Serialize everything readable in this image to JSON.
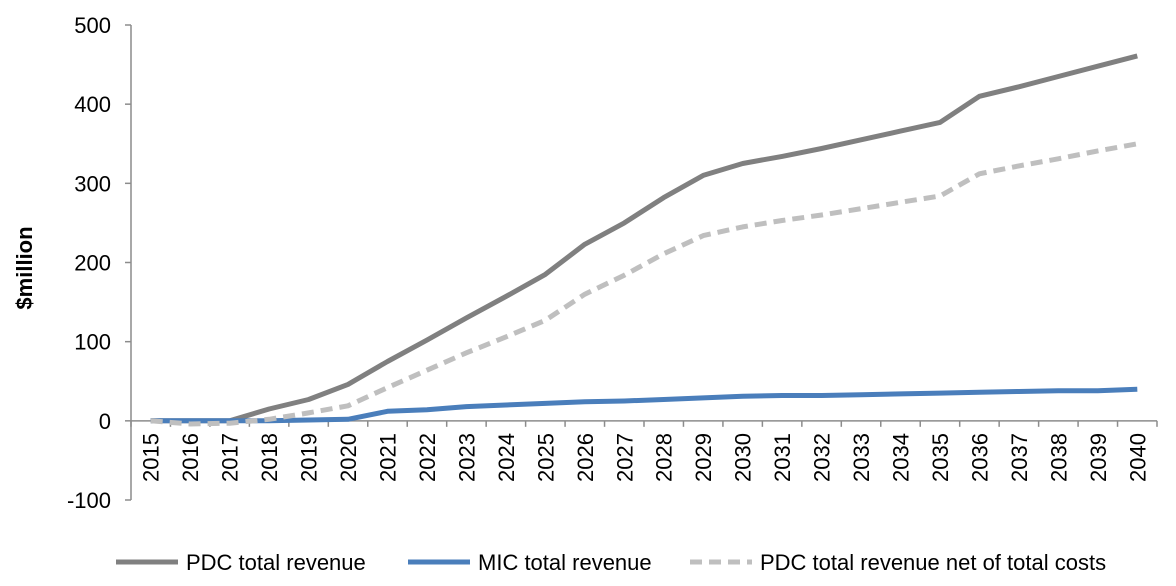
{
  "chart_data": {
    "type": "line",
    "ylabel": "$million",
    "xlabel": "",
    "title": "",
    "ylim": [
      -100,
      500
    ],
    "yticks": [
      -100,
      0,
      100,
      200,
      300,
      400,
      500
    ],
    "categories": [
      "2015",
      "2016",
      "2017",
      "2018",
      "2019",
      "2020",
      "2021",
      "2022",
      "2023",
      "2024",
      "2025",
      "2026",
      "2027",
      "2028",
      "2029",
      "2030",
      "2031",
      "2032",
      "2033",
      "2034",
      "2035",
      "2036",
      "2037",
      "2038",
      "2039",
      "2040"
    ],
    "grid": false,
    "legend_position": "bottom",
    "series": [
      {
        "name": "PDC total revenue",
        "color": "#808080",
        "style": "solid",
        "values": [
          0,
          0,
          0,
          15,
          27,
          46,
          75,
          102,
          130,
          157,
          185,
          223,
          250,
          282,
          310,
          325,
          334,
          344,
          355,
          366,
          377,
          410,
          422,
          435,
          448,
          461
        ]
      },
      {
        "name": "MIC total revenue",
        "color": "#4a7ebb",
        "style": "solid",
        "values": [
          0,
          0,
          0,
          0,
          1,
          2,
          12,
          14,
          18,
          20,
          22,
          24,
          25,
          27,
          29,
          31,
          32,
          32,
          33,
          34,
          35,
          36,
          37,
          38,
          38,
          40
        ]
      },
      {
        "name": "PDC total revenue net of total costs",
        "color": "#bfbfbf",
        "style": "dashed",
        "values": [
          0,
          -4,
          -3,
          2,
          10,
          19,
          42,
          64,
          86,
          106,
          127,
          160,
          184,
          211,
          234,
          245,
          253,
          260,
          268,
          276,
          284,
          312,
          322,
          331,
          341,
          350
        ]
      }
    ]
  }
}
